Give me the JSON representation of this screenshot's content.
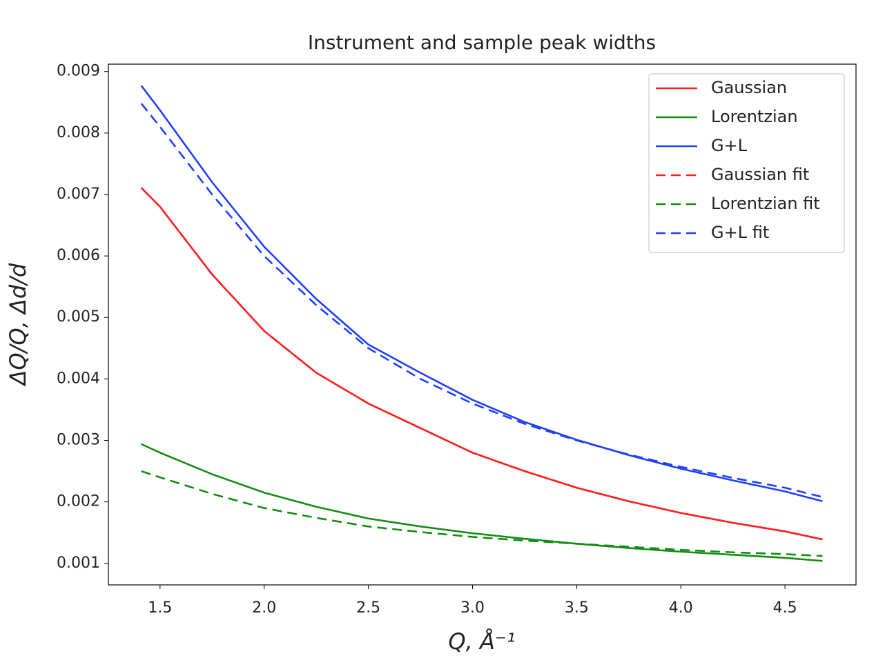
{
  "chart_data": {
    "type": "line",
    "title": "Instrument and sample peak widths",
    "xlabel": "Q, Å⁻¹",
    "ylabel": "ΔQ/Q, Δd/d",
    "x": [
      1.41,
      1.5,
      1.75,
      2.0,
      2.25,
      2.5,
      2.75,
      3.0,
      3.25,
      3.5,
      3.75,
      4.0,
      4.25,
      4.5,
      4.68
    ],
    "series": [
      {
        "name": "Gaussian",
        "color": "#ff2020",
        "dash": false,
        "values": [
          0.00711,
          0.0068,
          0.0057,
          0.00478,
          0.0041,
          0.0036,
          0.0032,
          0.0028,
          0.0025,
          0.00223,
          0.00201,
          0.00182,
          0.00166,
          0.00152,
          0.00139
        ]
      },
      {
        "name": "Lorentzian",
        "color": "#128c12",
        "dash": false,
        "values": [
          0.00294,
          0.0028,
          0.00245,
          0.00215,
          0.00192,
          0.00173,
          0.0016,
          0.00149,
          0.0014,
          0.00132,
          0.00125,
          0.00119,
          0.00114,
          0.00109,
          0.00104
        ]
      },
      {
        "name": "G+L",
        "color": "#1f3fff",
        "dash": false,
        "values": [
          0.00877,
          0.00837,
          0.0072,
          0.00615,
          0.0053,
          0.00456,
          0.0041,
          0.00366,
          0.0033,
          0.00301,
          0.00276,
          0.00254,
          0.00235,
          0.00217,
          0.00201
        ]
      },
      {
        "name": "Gaussian fit",
        "color": "#ff2020",
        "dash": true,
        "values": [
          0.00711,
          0.0068,
          0.0057,
          0.00478,
          0.0041,
          0.0036,
          0.0032,
          0.0028,
          0.0025,
          0.00223,
          0.00201,
          0.00182,
          0.00166,
          0.00152,
          0.00139
        ]
      },
      {
        "name": "Lorentzian fit",
        "color": "#128c12",
        "dash": true,
        "values": [
          0.0025,
          0.0024,
          0.00213,
          0.0019,
          0.00174,
          0.0016,
          0.00151,
          0.00143,
          0.00137,
          0.00132,
          0.00127,
          0.00122,
          0.00118,
          0.00115,
          0.00112
        ]
      },
      {
        "name": "G+L fit",
        "color": "#1f3fff",
        "dash": true,
        "values": [
          0.00848,
          0.0081,
          0.007,
          0.006,
          0.0052,
          0.0045,
          0.004,
          0.0036,
          0.00327,
          0.003,
          0.00277,
          0.00257,
          0.00239,
          0.00223,
          0.00208
        ]
      }
    ],
    "xlim": [
      1.252,
      4.841
    ],
    "xticks": [
      1.5,
      {
        "value": 2,
        "label": "2.0"
      },
      2.5,
      {
        "value": 3,
        "label": "3.0"
      },
      3.5,
      {
        "value": 4,
        "label": "4.0"
      },
      4.5
    ],
    "ylim": [
      0.00065,
      0.00912
    ],
    "yticks": [
      0.001,
      0.002,
      0.003,
      0.004,
      0.005,
      0.006,
      0.007,
      0.008,
      0.009
    ],
    "grid": false,
    "legend": "upper right"
  }
}
